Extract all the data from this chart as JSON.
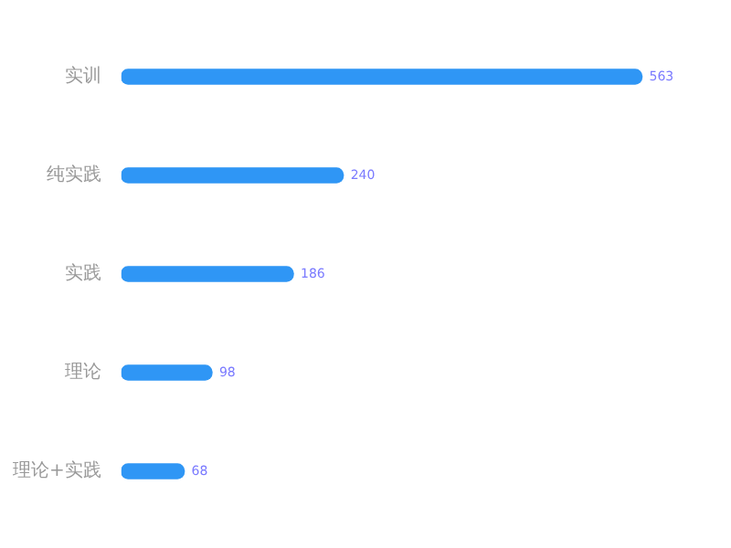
{
  "chart_data": {
    "type": "bar",
    "orientation": "horizontal",
    "categories": [
      "实训",
      "纯实践",
      "实践",
      "理论",
      "理论+实践"
    ],
    "values": [
      563,
      240,
      186,
      98,
      68
    ],
    "color": "#2f96f5",
    "data_labels": true
  }
}
